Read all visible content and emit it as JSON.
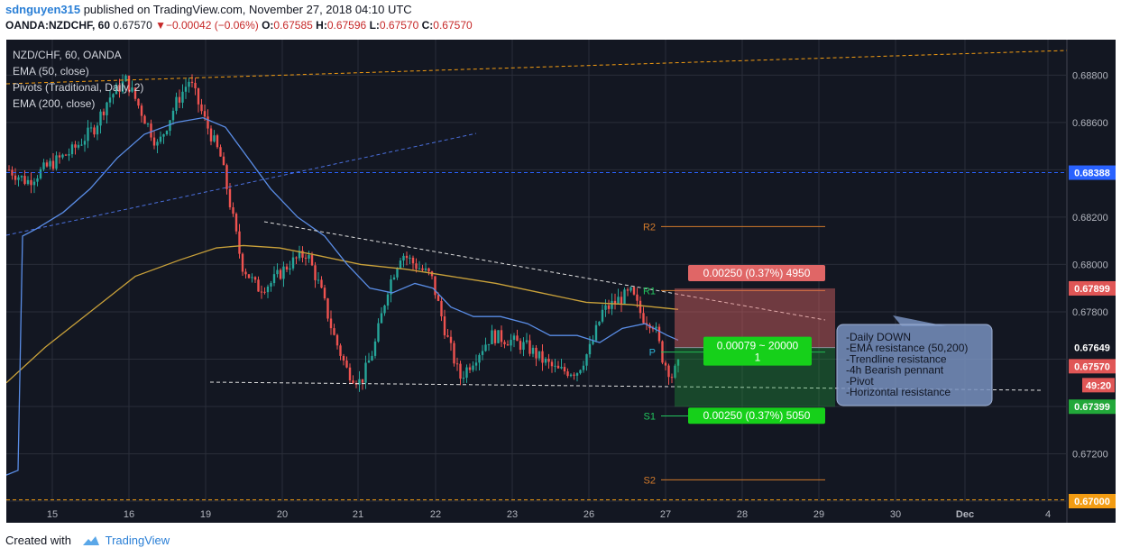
{
  "header": {
    "author": "sdnguyen315",
    "published": " published on TradingView.com, November 27, 2018 04:10 UTC",
    "symbol": "OANDA:NZDCHF, 60",
    "last": "0.67570",
    "arrow": "▼",
    "change": "−0.00042 (−0.06%)",
    "o_label": "O:",
    "o_val": "0.67585",
    "h_label": "H:",
    "h_val": "0.67596",
    "l_label": "L:",
    "l_val": "0.67570",
    "c_label": "C:",
    "c_val": "0.67570"
  },
  "legend": {
    "title": "NZD/CHF, 60, OANDA",
    "ema50": "EMA (50, close)",
    "pivots": "Pivots (Traditional, Daily, 2)",
    "ema200": "EMA (200, close)"
  },
  "footer": {
    "created_with": "Created with",
    "brand": "TradingView"
  },
  "colors": {
    "background": "#131722",
    "grid": "#2a2e39",
    "up": "#26a69a",
    "down": "#ef5350",
    "ema50": "#5a8de6",
    "ema200": "#c9a13a",
    "pivot_resistance": "#d27a2b",
    "pivot_support_label": "#22c55e",
    "short_target": "#e06666",
    "long_target": "#16d01a"
  },
  "chart_data": {
    "type": "candlestick",
    "title": "NZD/CHF, 60, OANDA",
    "y_axis": {
      "range": [
        0.67,
        0.6895
      ],
      "tick_labels": [
        "0.68800",
        "0.68600",
        "0.68200",
        "0.68000",
        "0.67800",
        "0.67200"
      ],
      "tick_values": [
        0.688,
        0.686,
        0.682,
        0.68,
        0.678,
        0.672
      ],
      "price_tags": [
        {
          "label": "0.68388",
          "value": 0.68388,
          "color": "#2962ff"
        },
        {
          "label": "0.67899",
          "value": 0.67899,
          "color": "#e05656"
        },
        {
          "label": "0.67649",
          "value": 0.67649,
          "color": "#131722"
        },
        {
          "label": "0.67570",
          "value": 0.6757,
          "color": "#e05656"
        },
        {
          "label": "49:20",
          "value": 0.6749,
          "color": "#e05656"
        },
        {
          "label": "0.67399",
          "value": 0.67399,
          "color": "#22a83a"
        },
        {
          "label": "0.67000",
          "value": 0.67,
          "color": "#f39c12"
        }
      ]
    },
    "x_axis": {
      "tick_labels": [
        "15",
        "16",
        "19",
        "20",
        "21",
        "22",
        "23",
        "26",
        "27",
        "28",
        "29",
        "30",
        "Dec",
        "4"
      ]
    },
    "pivots": [
      {
        "label": "R2",
        "value": 0.6816
      },
      {
        "label": "R1",
        "value": 0.6789
      },
      {
        "label": "P",
        "value": 0.6763
      },
      {
        "label": "S1",
        "value": 0.6736
      },
      {
        "label": "S2",
        "value": 0.6709
      }
    ],
    "horizontal_levels": [
      {
        "value": 0.68388,
        "style": "dashed",
        "color": "#2962ff"
      },
      {
        "value": 0.67005,
        "style": "dashed",
        "color": "#f39c12"
      }
    ],
    "position": {
      "entry": 0.67649,
      "stop": 0.67899,
      "target": 0.67399,
      "stop_label": "0.00250 (0.37%) 4950",
      "target_label": "0.00250 (0.37%) 5050",
      "middle_label_1": "0.00079 ~ 20000",
      "middle_label_2": "1"
    },
    "annotation": [
      "-Daily DOWN",
      "-EMA resistance (50,200)",
      "-Trendline resistance",
      "-4h Bearish pennant",
      "-Pivot",
      "-Horizontal resistance"
    ],
    "series": [
      {
        "name": "EMA (50, close)",
        "role": "ema50"
      },
      {
        "name": "EMA (200, close)",
        "role": "ema200"
      }
    ]
  }
}
